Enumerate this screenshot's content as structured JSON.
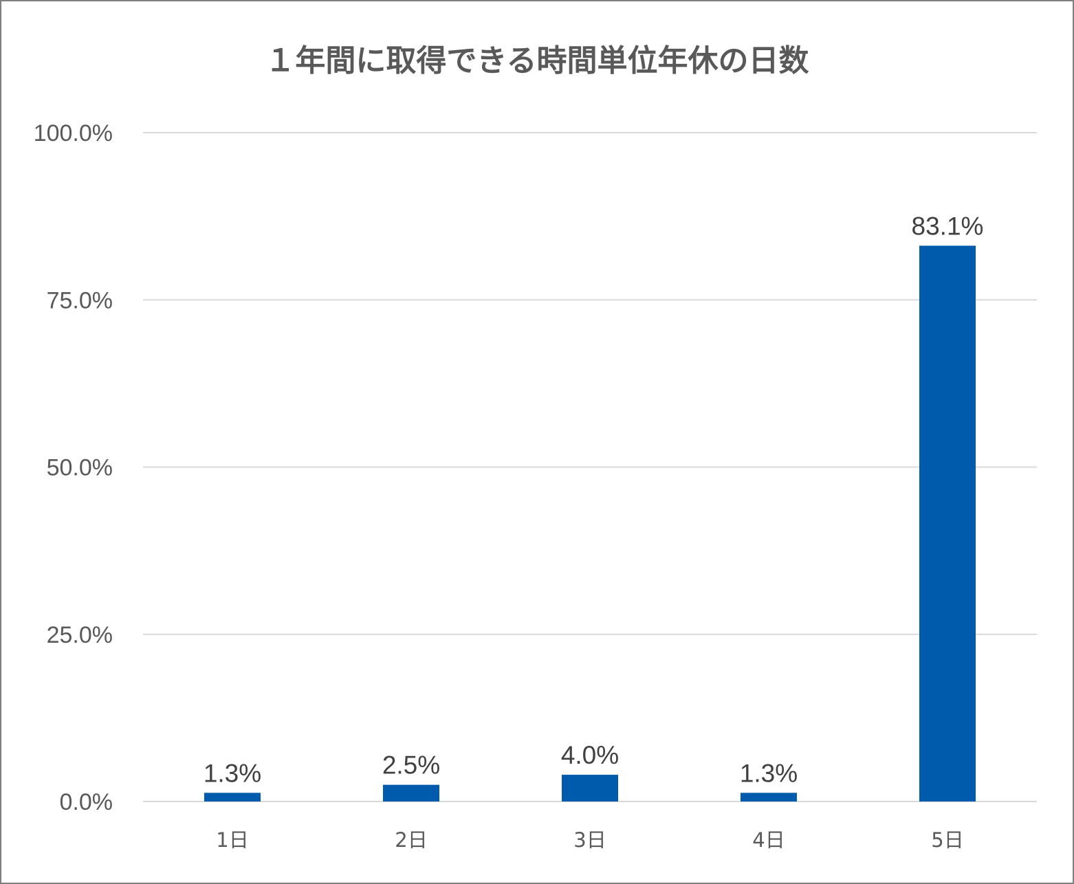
{
  "chart_data": {
    "type": "bar",
    "title": "１年間に取得できる時間単位年休の日数",
    "categories": [
      "1日",
      "2日",
      "3日",
      "4日",
      "5日"
    ],
    "values": [
      1.3,
      2.5,
      4.0,
      1.3,
      83.1
    ],
    "data_labels": [
      "1.3%",
      "2.5%",
      "4.0%",
      "1.3%",
      "83.1%"
    ],
    "xlabel": "",
    "ylabel": "",
    "ylim": [
      0,
      100
    ],
    "yticks": [
      0,
      25,
      50,
      75,
      100
    ],
    "ytick_labels": [
      "0.0%",
      "25.0%",
      "50.0%",
      "75.0%",
      "100.0%"
    ],
    "grid": true,
    "legend": "none",
    "bar_color": "#005bac"
  }
}
